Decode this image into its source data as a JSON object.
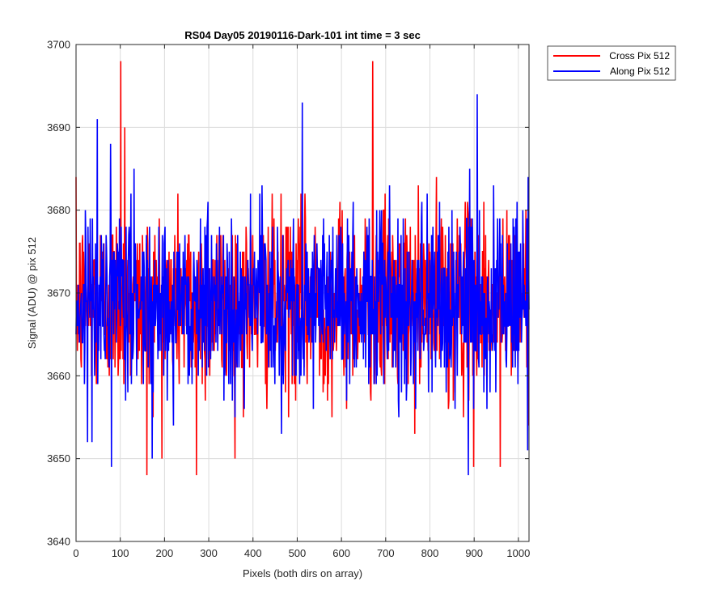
{
  "chart_data": {
    "type": "line",
    "title": "RS04 Day05 20190116-Dark-101 int time = 3 sec",
    "xlabel": "Pixels (both dirs on array)",
    "ylabel": "Signal (ADU) @ pix 512",
    "xlim": [
      0,
      1024
    ],
    "ylim": [
      3640,
      3700
    ],
    "xticks": [
      0,
      100,
      200,
      300,
      400,
      500,
      600,
      700,
      800,
      900,
      1000
    ],
    "yticks": [
      3640,
      3650,
      3660,
      3670,
      3680,
      3690,
      3700
    ],
    "grid": true,
    "legend_position": "outside-top-right",
    "series": [
      {
        "name": "Cross Pix 512",
        "color": "#ff0000",
        "n_points": 1024,
        "mean": 3669,
        "spread": 5.5,
        "range": [
          3648,
          3698
        ],
        "peaks": [
          {
            "x": 101,
            "y": 3698
          },
          {
            "x": 110,
            "y": 3690
          },
          {
            "x": 160,
            "y": 3648
          },
          {
            "x": 272,
            "y": 3648
          },
          {
            "x": 670,
            "y": 3698
          },
          {
            "x": 898,
            "y": 3649
          },
          {
            "x": 958,
            "y": 3649
          }
        ]
      },
      {
        "name": "Along Pix 512",
        "color": "#0000ff",
        "n_points": 1024,
        "mean": 3669,
        "spread": 5.5,
        "range": [
          3648,
          3694
        ],
        "peaks": [
          {
            "x": 48,
            "y": 3691
          },
          {
            "x": 80,
            "y": 3649
          },
          {
            "x": 511,
            "y": 3693
          },
          {
            "x": 886,
            "y": 3648
          },
          {
            "x": 906,
            "y": 3694
          },
          {
            "x": 1020,
            "y": 3651
          }
        ]
      }
    ]
  }
}
